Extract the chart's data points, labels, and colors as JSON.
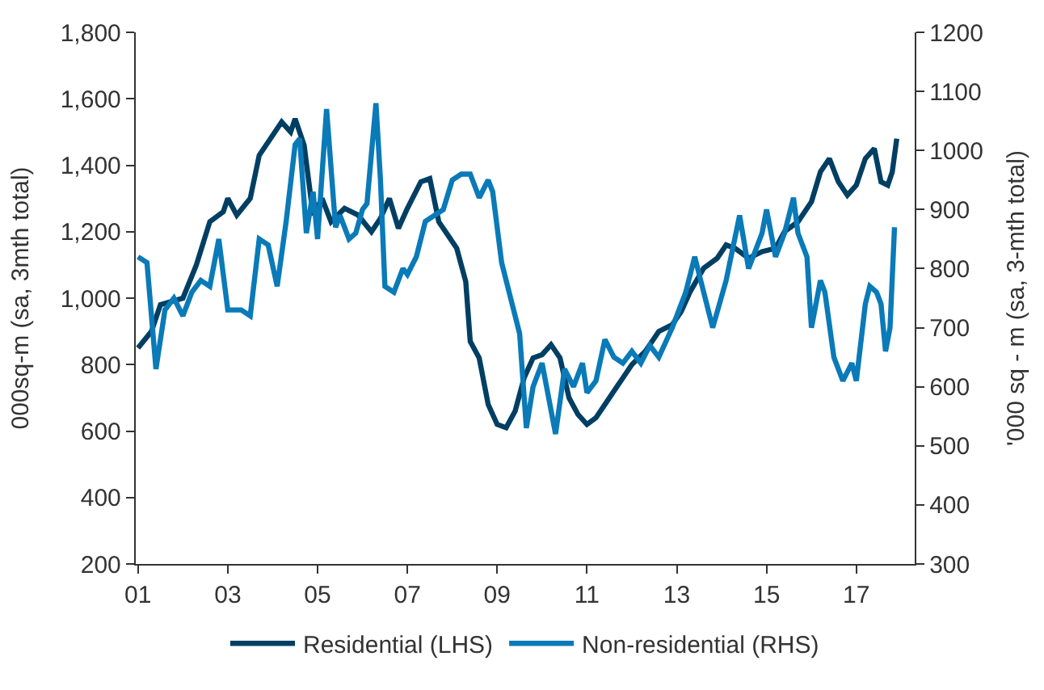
{
  "chart_data": {
    "type": "line",
    "ylabel": "000sq-m (sa, 3mth total)",
    "y2label": "'000 sq - m (sa, 3-mth total)",
    "legend": "bottom",
    "xlim": [
      2000.95,
      2018.3
    ],
    "xticks": [
      {
        "value": 2001,
        "label": "01"
      },
      {
        "value": 2003,
        "label": "03"
      },
      {
        "value": 2005,
        "label": "05"
      },
      {
        "value": 2007,
        "label": "07"
      },
      {
        "value": 2009,
        "label": "09"
      },
      {
        "value": 2011,
        "label": "11"
      },
      {
        "value": 2013,
        "label": "13"
      },
      {
        "value": 2015,
        "label": "15"
      },
      {
        "value": 2017,
        "label": "17"
      }
    ],
    "ylim": [
      200,
      1800
    ],
    "yticks": [
      200,
      400,
      600,
      800,
      {
        "value": 1000,
        "label": "1,000"
      },
      {
        "value": 1200,
        "label": "1,200"
      },
      {
        "value": 1400,
        "label": "1,400"
      },
      {
        "value": 1600,
        "label": "1,600"
      },
      {
        "value": 1800,
        "label": "1,800"
      }
    ],
    "y2lim": [
      300,
      1200
    ],
    "y2ticks": [
      300,
      400,
      500,
      600,
      700,
      800,
      900,
      1000,
      1100,
      1200
    ],
    "series": [
      {
        "name": "Residential (LHS)",
        "color": "#003f63",
        "x": [
          2001.0,
          2001.3,
          2001.5,
          2002.0,
          2002.3,
          2002.6,
          2002.9,
          2003.0,
          2003.2,
          2003.5,
          2003.7,
          2003.9,
          2004.2,
          2004.4,
          2004.5,
          2004.7,
          2004.9,
          2005.1,
          2005.3,
          2005.6,
          2005.9,
          2006.2,
          2006.4,
          2006.6,
          2006.8,
          2007.0,
          2007.3,
          2007.5,
          2007.7,
          2007.9,
          2008.1,
          2008.3,
          2008.4,
          2008.6,
          2008.8,
          2009.0,
          2009.2,
          2009.4,
          2009.6,
          2009.8,
          2010.0,
          2010.2,
          2010.4,
          2010.6,
          2010.8,
          2011.0,
          2011.2,
          2011.5,
          2011.8,
          2012.0,
          2012.3,
          2012.6,
          2012.9,
          2013.1,
          2013.3,
          2013.6,
          2013.9,
          2014.1,
          2014.3,
          2014.6,
          2014.9,
          2015.2,
          2015.4,
          2015.7,
          2016.0,
          2016.2,
          2016.4,
          2016.6,
          2016.8,
          2017.0,
          2017.2,
          2017.4,
          2017.55,
          2017.7,
          2017.8,
          2017.9
        ],
        "values": [
          850,
          900,
          980,
          1000,
          1100,
          1230,
          1260,
          1300,
          1250,
          1300,
          1430,
          1470,
          1530,
          1500,
          1540,
          1460,
          1250,
          1300,
          1230,
          1270,
          1250,
          1200,
          1240,
          1300,
          1210,
          1270,
          1350,
          1360,
          1230,
          1190,
          1150,
          1050,
          870,
          820,
          680,
          620,
          610,
          660,
          760,
          820,
          830,
          860,
          820,
          700,
          650,
          620,
          640,
          700,
          760,
          800,
          840,
          900,
          920,
          960,
          1020,
          1090,
          1120,
          1160,
          1150,
          1120,
          1140,
          1150,
          1200,
          1230,
          1290,
          1380,
          1420,
          1350,
          1310,
          1340,
          1420,
          1450,
          1350,
          1340,
          1380,
          1480
        ]
      },
      {
        "name": "Non-residential (RHS)",
        "color": "#0a7ab8",
        "axis": "y2",
        "x": [
          2001.0,
          2001.2,
          2001.4,
          2001.6,
          2001.8,
          2002.0,
          2002.2,
          2002.4,
          2002.6,
          2002.8,
          2003.0,
          2003.3,
          2003.5,
          2003.7,
          2003.9,
          2004.1,
          2004.3,
          2004.5,
          2004.6,
          2004.75,
          2004.9,
          2005.0,
          2005.2,
          2005.4,
          2005.5,
          2005.7,
          2005.85,
          2006.0,
          2006.1,
          2006.3,
          2006.4,
          2006.5,
          2006.7,
          2006.9,
          2007.0,
          2007.2,
          2007.4,
          2007.6,
          2007.8,
          2008.0,
          2008.2,
          2008.4,
          2008.6,
          2008.8,
          2008.9,
          2009.1,
          2009.3,
          2009.5,
          2009.65,
          2009.8,
          2010.0,
          2010.2,
          2010.3,
          2010.5,
          2010.7,
          2010.9,
          2011.0,
          2011.2,
          2011.4,
          2011.6,
          2011.8,
          2012.0,
          2012.2,
          2012.4,
          2012.6,
          2012.9,
          2013.0,
          2013.2,
          2013.4,
          2013.6,
          2013.8,
          2014.1,
          2014.4,
          2014.6,
          2014.9,
          2015.0,
          2015.2,
          2015.4,
          2015.6,
          2015.7,
          2015.9,
          2016.0,
          2016.2,
          2016.3,
          2016.5,
          2016.7,
          2016.9,
          2017.0,
          2017.2,
          2017.3,
          2017.45,
          2017.55,
          2017.65,
          2017.75,
          2017.85
        ],
        "values": [
          820,
          810,
          630,
          730,
          750,
          720,
          760,
          780,
          770,
          850,
          730,
          730,
          720,
          850,
          840,
          770,
          880,
          1010,
          1020,
          860,
          930,
          850,
          1070,
          870,
          890,
          850,
          860,
          900,
          910,
          1080,
          950,
          770,
          760,
          800,
          790,
          820,
          880,
          890,
          900,
          950,
          960,
          960,
          920,
          950,
          930,
          810,
          750,
          690,
          530,
          600,
          640,
          560,
          520,
          630,
          600,
          640,
          590,
          610,
          680,
          650,
          640,
          660,
          640,
          670,
          650,
          700,
          720,
          760,
          820,
          760,
          700,
          780,
          890,
          800,
          860,
          900,
          820,
          860,
          920,
          860,
          820,
          700,
          780,
          760,
          650,
          610,
          640,
          610,
          740,
          770,
          760,
          740,
          660,
          700,
          870
        ]
      }
    ]
  }
}
